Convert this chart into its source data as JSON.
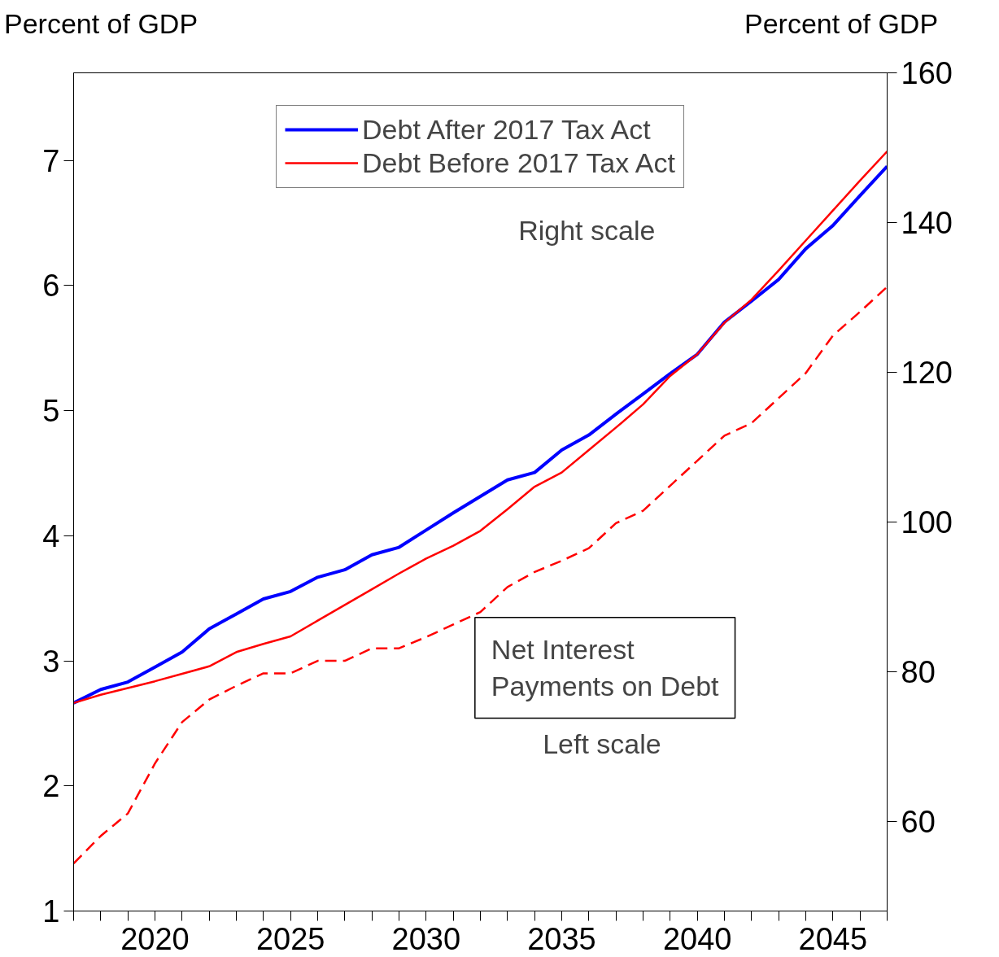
{
  "chart_data": {
    "type": "line",
    "ylabel": "Percent of GDP",
    "y2label": "Percent of GDP",
    "x": [
      2017,
      2018,
      2019,
      2020,
      2021,
      2022,
      2023,
      2024,
      2025,
      2026,
      2027,
      2028,
      2029,
      2030,
      2031,
      2032,
      2033,
      2034,
      2035,
      2036,
      2037,
      2038,
      2039,
      2040,
      2041,
      2042,
      2043,
      2044,
      2045,
      2046,
      2047
    ],
    "series": [
      {
        "name": "Debt After 2017 Tax Act",
        "color": "#0000ff",
        "axis": "y2",
        "line_style": "solid",
        "values": [
          75.8,
          77.6,
          78.6,
          80.6,
          82.6,
          85.7,
          87.7,
          89.7,
          90.7,
          92.6,
          93.6,
          95.6,
          96.6,
          98.9,
          101.2,
          103.4,
          105.6,
          106.6,
          109.6,
          111.6,
          114.4,
          117.1,
          119.8,
          122.4,
          126.7,
          129.5,
          132.4,
          136.5,
          139.6,
          143.6,
          147.5
        ]
      },
      {
        "name": "Debt Before 2017 Tax Act",
        "color": "#ff0000",
        "axis": "y2",
        "line_style": "solid",
        "values": [
          75.8,
          76.9,
          77.8,
          78.7,
          79.7,
          80.7,
          82.6,
          83.7,
          84.7,
          86.8,
          88.9,
          91.0,
          93.1,
          95.1,
          96.8,
          98.8,
          101.7,
          104.7,
          106.6,
          109.6,
          112.6,
          115.7,
          119.5,
          122.4,
          126.6,
          129.7,
          133.6,
          137.6,
          141.6,
          145.6,
          149.5
        ]
      },
      {
        "color": "#ff0000",
        "line_style": "dashed",
        "values": [
          1.38,
          1.6,
          1.78,
          2.18,
          2.51,
          2.69,
          2.8,
          2.9,
          2.9,
          3.0,
          3.0,
          3.1,
          3.1,
          3.19,
          3.29,
          3.39,
          3.59,
          3.71,
          3.8,
          3.9,
          4.1,
          4.2,
          4.4,
          4.6,
          4.8,
          4.9,
          5.1,
          5.3,
          5.6,
          5.79,
          5.99
        ]
      }
    ],
    "xlim": [
      2017,
      2047
    ],
    "xticks": [
      {
        "value": 2017,
        "label": null
      },
      {
        "value": 2018,
        "label": null
      },
      {
        "value": 2019,
        "label": null
      },
      2020,
      {
        "value": 2021,
        "label": null
      },
      {
        "value": 2022,
        "label": null
      },
      {
        "value": 2023,
        "label": null
      },
      {
        "value": 2024,
        "label": null
      },
      2025,
      {
        "value": 2026,
        "label": null
      },
      {
        "value": 2027,
        "label": null
      },
      {
        "value": 2028,
        "label": null
      },
      {
        "value": 2029,
        "label": null
      },
      2030,
      {
        "value": 2031,
        "label": null
      },
      {
        "value": 2032,
        "label": null
      },
      {
        "value": 2033,
        "label": null
      },
      {
        "value": 2034,
        "label": null
      },
      2035,
      {
        "value": 2036,
        "label": null
      },
      {
        "value": 2037,
        "label": null
      },
      {
        "value": 2038,
        "label": null
      },
      {
        "value": 2039,
        "label": null
      },
      2040,
      {
        "value": 2041,
        "label": null
      },
      {
        "value": 2042,
        "label": null
      },
      {
        "value": 2043,
        "label": null
      },
      {
        "value": 2044,
        "label": null
      },
      2045,
      {
        "value": 2046,
        "label": null
      },
      {
        "value": 2047,
        "label": null
      }
    ],
    "ylim": [
      1,
      7.7
    ],
    "yticks": [
      1,
      2,
      3,
      4,
      5,
      6,
      7
    ],
    "y2lim": [
      48,
      160
    ],
    "y2ticks": [
      60,
      80,
      100,
      120,
      140,
      160
    ],
    "annotations": [
      "Right scale",
      "Net Interest\nPayments on Debt",
      "Left scale"
    ],
    "legend": "top",
    "grid": false
  }
}
